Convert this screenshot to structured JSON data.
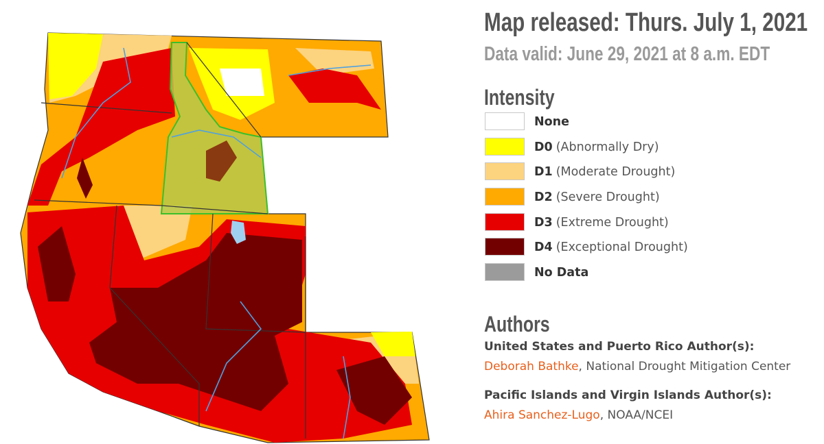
{
  "header": {
    "title": "Map released: Thurs. July 1, 2021",
    "subtitle": "Data valid: June 29, 2021 at 8 a.m. EDT"
  },
  "legend": {
    "title": "Intensity",
    "items": [
      {
        "label": "None",
        "color": "#ffffff"
      },
      {
        "code": "D0",
        "label": "(Abnormally Dry)",
        "color": "#ffff00"
      },
      {
        "code": "D1",
        "label": "(Moderate Drought)",
        "color": "#fcd37f"
      },
      {
        "code": "D2",
        "label": "(Severe Drought)",
        "color": "#ffaa00"
      },
      {
        "code": "D3",
        "label": "(Extreme Drought)",
        "color": "#e60000"
      },
      {
        "code": "D4",
        "label": "(Exceptional Drought)",
        "color": "#730000"
      },
      {
        "label": "No Data",
        "color": "#9b9b9b"
      }
    ]
  },
  "authors": {
    "title": "Authors",
    "groups": [
      {
        "heading": "United States and Puerto Rico Author(s):",
        "name": "Deborah Bathke",
        "affiliation": "National Drought Mitigation Center"
      },
      {
        "heading": "Pacific Islands and Virgin Islands Author(s):",
        "name": "Ahira Sanchez-Lugo",
        "affiliation": "NOAA/NCEI"
      }
    ]
  }
}
